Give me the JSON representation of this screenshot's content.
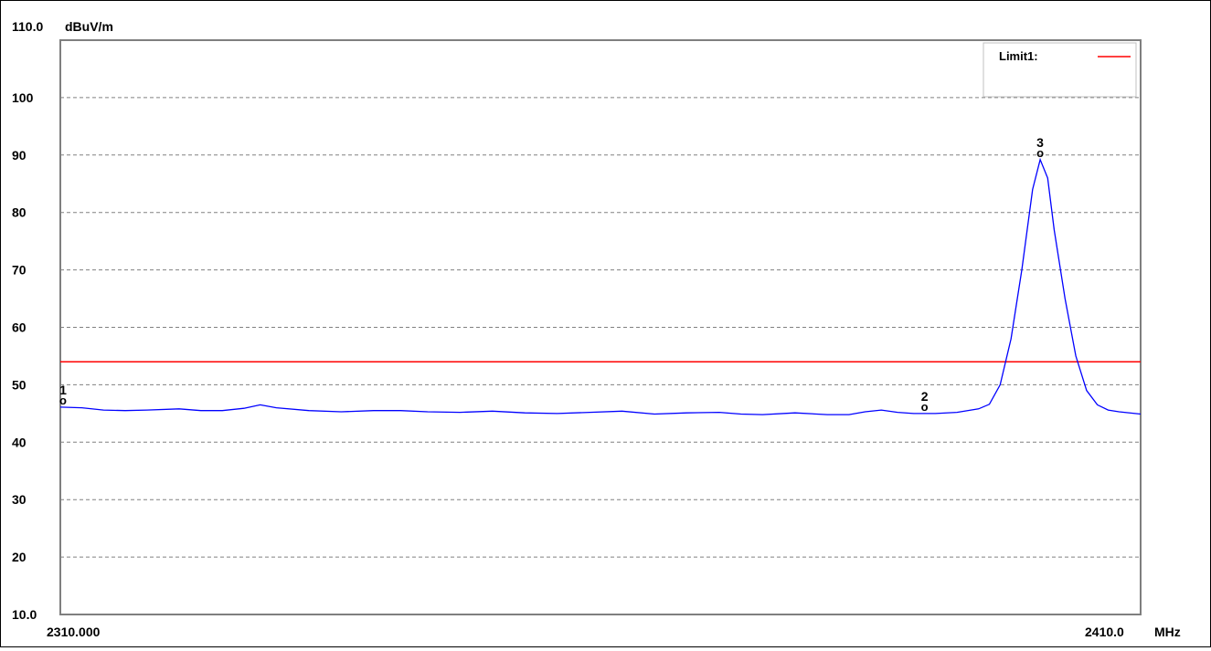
{
  "chart_data": {
    "type": "line",
    "unit_label": "dBuV/m",
    "top_value_label": "110.0",
    "y_tick_labels": [
      "100",
      "90",
      "80",
      "70",
      "60",
      "50",
      "40",
      "30",
      "20",
      "10.0"
    ],
    "y_ticks": [
      100,
      90,
      80,
      70,
      60,
      50,
      40,
      30,
      20,
      10
    ],
    "ylim": [
      10,
      110
    ],
    "xlim": [
      2310,
      2410
    ],
    "x_start_label": "2310.000",
    "x_end_label": "2410.0",
    "x_unit": "MHz",
    "grid": true,
    "legend": {
      "position": "top-right",
      "entries": [
        {
          "name": "Limit1:",
          "color": "#ff0000"
        }
      ]
    },
    "limit": {
      "name": "Limit1",
      "value": 54,
      "color": "#ff0000"
    },
    "series": [
      {
        "color": "#0000ff",
        "points": [
          [
            2310,
            46.1
          ],
          [
            2312,
            46.0
          ],
          [
            2314,
            45.6
          ],
          [
            2316,
            45.5
          ],
          [
            2318,
            45.6
          ],
          [
            2321,
            45.8
          ],
          [
            2323,
            45.5
          ],
          [
            2325,
            45.5
          ],
          [
            2327,
            45.9
          ],
          [
            2328.5,
            46.5
          ],
          [
            2330,
            46.0
          ],
          [
            2333,
            45.5
          ],
          [
            2336,
            45.3
          ],
          [
            2339,
            45.5
          ],
          [
            2341.5,
            45.5
          ],
          [
            2344,
            45.3
          ],
          [
            2347,
            45.2
          ],
          [
            2350,
            45.4
          ],
          [
            2353,
            45.1
          ],
          [
            2356,
            45.0
          ],
          [
            2359,
            45.2
          ],
          [
            2362,
            45.4
          ],
          [
            2365,
            44.9
          ],
          [
            2368,
            45.1
          ],
          [
            2371,
            45.2
          ],
          [
            2373,
            44.9
          ],
          [
            2375,
            44.8
          ],
          [
            2378,
            45.1
          ],
          [
            2381,
            44.8
          ],
          [
            2383,
            44.8
          ],
          [
            2384.5,
            45.3
          ],
          [
            2386,
            45.6
          ],
          [
            2387.5,
            45.2
          ],
          [
            2389,
            45.0
          ],
          [
            2391,
            45.0
          ],
          [
            2393,
            45.2
          ],
          [
            2395,
            45.8
          ],
          [
            2396,
            46.6
          ],
          [
            2397,
            50.0
          ],
          [
            2398,
            58.0
          ],
          [
            2399,
            70.0
          ],
          [
            2400,
            84.0
          ],
          [
            2400.7,
            89.2
          ],
          [
            2401.4,
            86.0
          ],
          [
            2402,
            77.0
          ],
          [
            2403,
            65.0
          ],
          [
            2404,
            55.0
          ],
          [
            2405,
            49.0
          ],
          [
            2406,
            46.5
          ],
          [
            2407,
            45.6
          ],
          [
            2408,
            45.3
          ],
          [
            2410,
            44.9
          ]
        ]
      }
    ],
    "markers": [
      {
        "label": "1",
        "x": 2310.0,
        "y": 46.1
      },
      {
        "label": "2",
        "x": 2390.0,
        "y": 45.0
      },
      {
        "label": "3",
        "x": 2400.7,
        "y": 89.2
      }
    ]
  }
}
